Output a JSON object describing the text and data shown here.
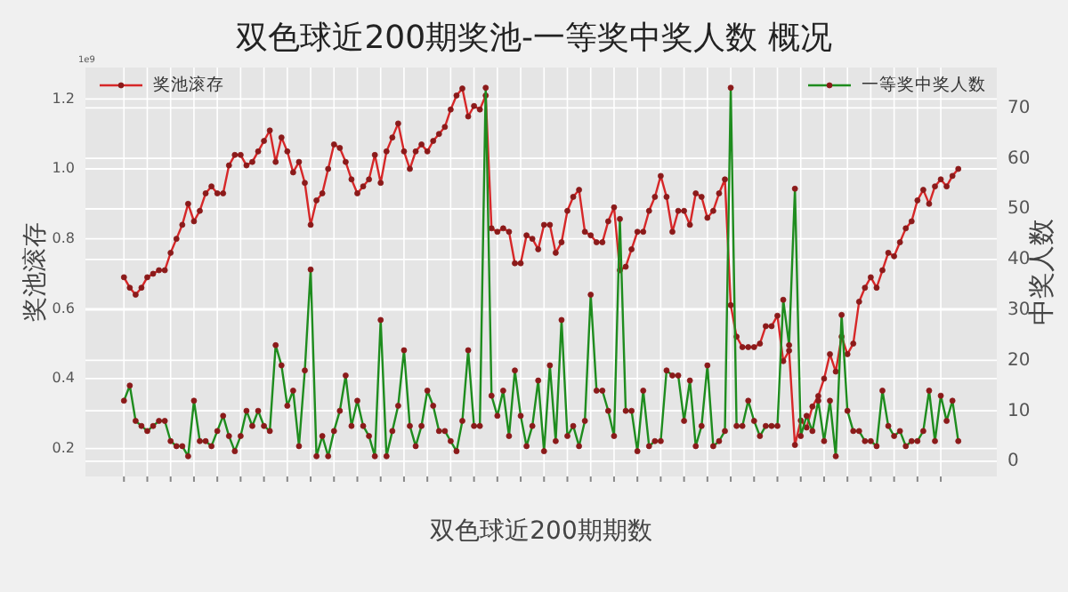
{
  "chart_data": {
    "type": "line",
    "title": "双色球近200期奖池-一等奖中奖人数 概况",
    "xlabel": "双色球近200期期数",
    "ylabel": "奖池滚存",
    "y2label": "中奖人数",
    "annotations": [
      "1e9"
    ],
    "categories": [
      null,
      null,
      null,
      null,
      null,
      null,
      null,
      null,
      null,
      null,
      null,
      null,
      null,
      null,
      null,
      null,
      null,
      null,
      null,
      null,
      null,
      null,
      null,
      null,
      null,
      null,
      null,
      null,
      null,
      null,
      null,
      null,
      null,
      null,
      null,
      null,
      null,
      null,
      null,
      null,
      null,
      null,
      null,
      null,
      null,
      null,
      null,
      null,
      null,
      null,
      null,
      null,
      null,
      null,
      null,
      null,
      null,
      null,
      null,
      null,
      null,
      null,
      null,
      null,
      null,
      null,
      null,
      null,
      null,
      null,
      null,
      null,
      null,
      null,
      null,
      null,
      null,
      null,
      null,
      null,
      null,
      null,
      null,
      null,
      null,
      null,
      null,
      null,
      null,
      null,
      null,
      null,
      null,
      null,
      null,
      null,
      null,
      null,
      null,
      null,
      null,
      null,
      null,
      null,
      null,
      null,
      null,
      null,
      null,
      null,
      null,
      null,
      null,
      null,
      null,
      null,
      null,
      null,
      null,
      null,
      null,
      null,
      null,
      null,
      null,
      null,
      null,
      null,
      null,
      null,
      null,
      null,
      null,
      null,
      null,
      null,
      null,
      null,
      null,
      null,
      null,
      null,
      null,
      null
    ],
    "ylim": [
      0.12,
      1.29
    ],
    "yticks": [
      0.2,
      0.4,
      0.6,
      0.8,
      {
        "value": 1,
        "label": "1.0"
      },
      1.2
    ],
    "y2lim": [
      -3,
      78
    ],
    "y2ticks": [
      0,
      10,
      20,
      30,
      40,
      50,
      60,
      70
    ],
    "grid": true,
    "legend": "top",
    "marker": "circle",
    "line_style": "solid",
    "series": [
      {
        "name": "奖池滚存",
        "color": "#d62728",
        "values": [
          0.69,
          0.66,
          0.64,
          0.66,
          0.69,
          0.7,
          0.71,
          0.71,
          0.76,
          0.8,
          0.84,
          0.9,
          0.85,
          0.88,
          0.93,
          0.95,
          0.93,
          0.93,
          1.01,
          1.04,
          1.04,
          1.01,
          1.02,
          1.05,
          1.08,
          1.11,
          1.02,
          1.09,
          1.05,
          0.99,
          1.02,
          0.96,
          0.84,
          0.91,
          0.93,
          1.0,
          1.07,
          1.06,
          1.02,
          0.97,
          0.93,
          0.95,
          0.97,
          1.04,
          0.96,
          1.05,
          1.09,
          1.13,
          1.05,
          1.0,
          1.05,
          1.07,
          1.05,
          1.08,
          1.1,
          1.12,
          1.17,
          1.21,
          1.23,
          1.15,
          1.18,
          1.17,
          1.21,
          0.83,
          0.82,
          0.83,
          0.82,
          0.73,
          0.73,
          0.81,
          0.8,
          0.77,
          0.84,
          0.84,
          0.76,
          0.79,
          0.88,
          0.92,
          0.94,
          0.82,
          0.81,
          0.79,
          0.79,
          0.85,
          0.89,
          0.71,
          0.72,
          0.77,
          0.82,
          0.82,
          0.88,
          0.92,
          0.98,
          0.92,
          0.82,
          0.88,
          0.88,
          0.84,
          0.93,
          0.92,
          0.86,
          0.88,
          0.93,
          0.97,
          0.61,
          0.52,
          0.49,
          0.49,
          0.49,
          0.5,
          0.55,
          0.55,
          0.58,
          0.45,
          0.48,
          0.21,
          0.28,
          0.26,
          0.32,
          0.35,
          0.4,
          0.47,
          0.42,
          0.52,
          0.47,
          0.5,
          0.62,
          0.66,
          0.69,
          0.66,
          0.71,
          0.76,
          0.75,
          0.79,
          0.83,
          0.85,
          0.91,
          0.94,
          0.9,
          0.95,
          0.97,
          0.95,
          0.98,
          1.0
        ]
      },
      {
        "name": "一等奖中奖人数",
        "color": "#1e8c1e",
        "axis": "y2",
        "values": [
          12,
          15,
          8,
          7,
          6,
          7,
          8,
          8,
          4,
          3,
          3,
          1,
          12,
          4,
          4,
          3,
          6,
          9,
          5,
          2,
          5,
          10,
          7,
          10,
          7,
          6,
          23,
          19,
          11,
          14,
          3,
          18,
          38,
          1,
          5,
          1,
          6,
          10,
          17,
          7,
          12,
          7,
          5,
          1,
          28,
          1,
          6,
          11,
          22,
          7,
          3,
          7,
          14,
          11,
          6,
          6,
          4,
          2,
          8,
          22,
          7,
          7,
          74,
          13,
          9,
          14,
          5,
          18,
          9,
          3,
          7,
          16,
          2,
          19,
          4,
          28,
          5,
          7,
          3,
          8,
          33,
          14,
          14,
          10,
          5,
          48,
          10,
          10,
          2,
          14,
          3,
          4,
          4,
          18,
          17,
          17,
          8,
          16,
          3,
          7,
          19,
          3,
          4,
          6,
          74,
          7,
          7,
          12,
          8,
          5,
          7,
          7,
          7,
          32,
          23,
          54,
          5,
          9,
          6,
          12,
          4,
          12,
          1,
          29,
          10,
          6,
          6,
          4,
          4,
          3,
          14,
          7,
          5,
          6,
          3,
          4,
          4,
          6,
          14,
          4,
          13,
          8,
          12,
          4
        ]
      }
    ]
  }
}
